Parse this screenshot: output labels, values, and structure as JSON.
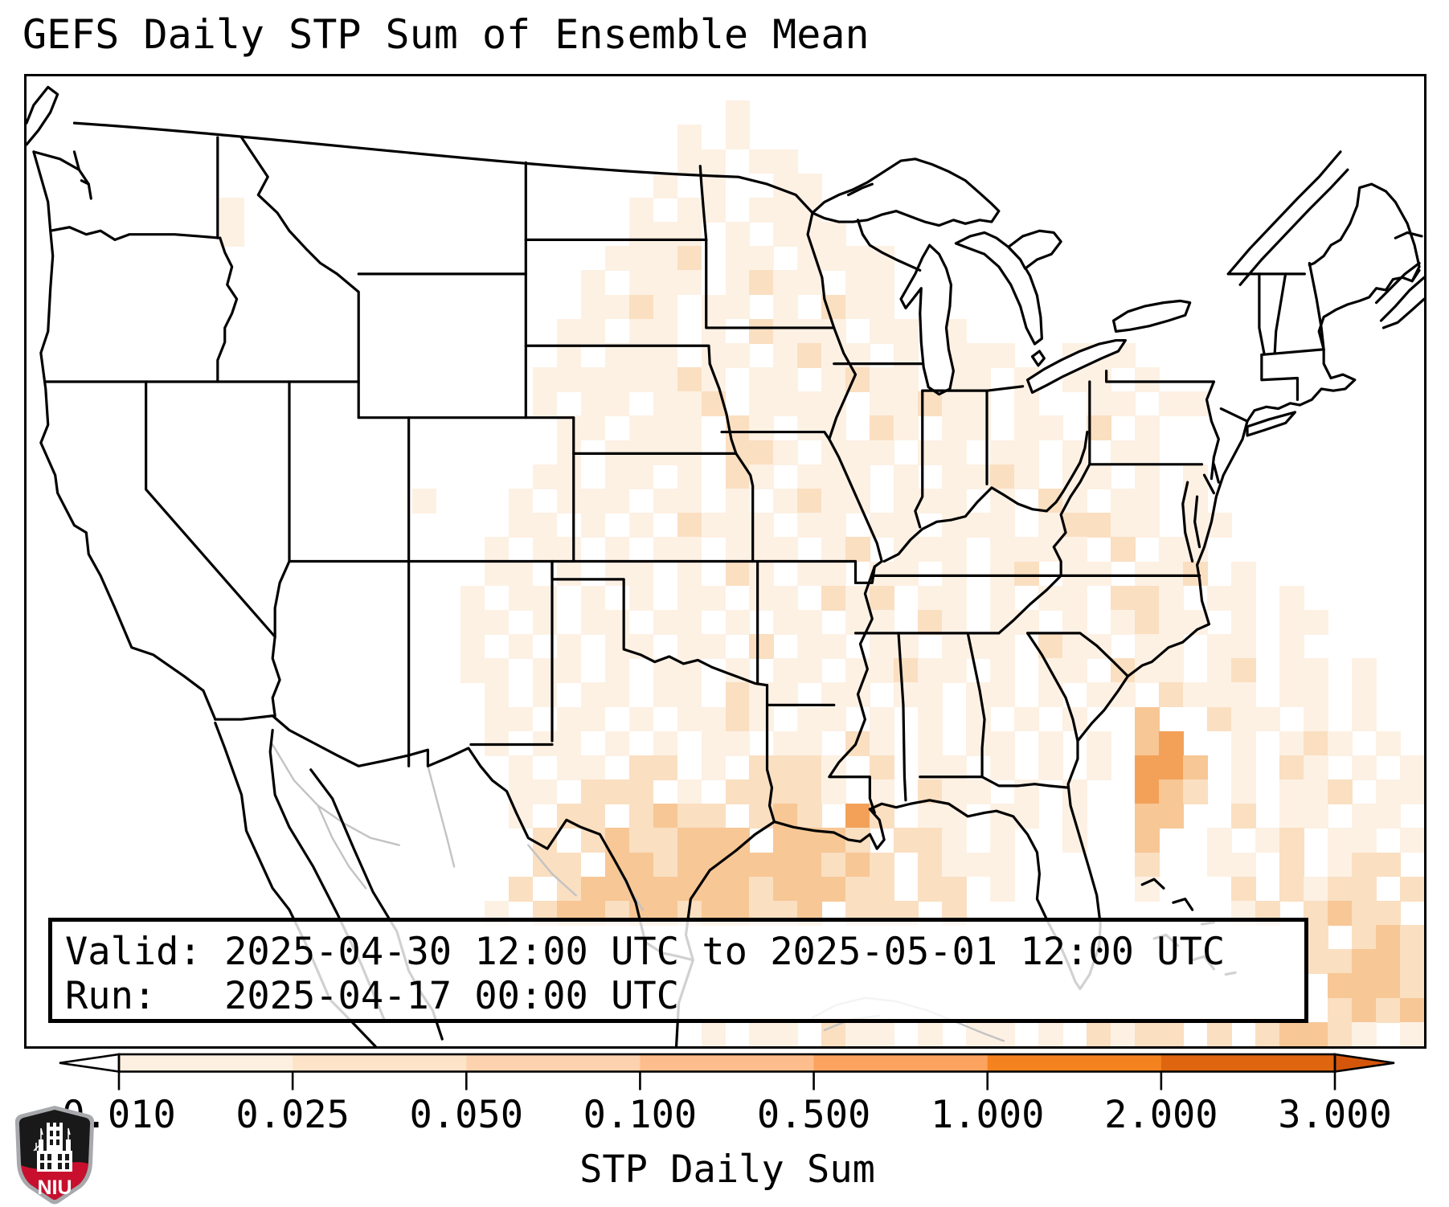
{
  "title": "GEFS Daily STP Sum of Ensemble Mean",
  "annotation": {
    "valid_line": "Valid: 2025-04-30 12:00 UTC to 2025-05-01 12:00 UTC",
    "run_line": "Run:   2025-04-17 00:00 UTC"
  },
  "colorbar": {
    "label": "STP Daily Sum",
    "ticks": [
      "0.010",
      "0.025",
      "0.050",
      "0.100",
      "0.500",
      "1.000",
      "2.000",
      "3.000"
    ],
    "segment_colors": [
      "#fdf0e0",
      "#fde3c8",
      "#fdd2ae",
      "#fdbd8c",
      "#fba35f",
      "#f4821e",
      "#e0650f"
    ],
    "under_arrow_color": "#ffffff",
    "over_arrow_color": "#d5560a",
    "outline_color": "#000000"
  },
  "logo": {
    "text": "NIU",
    "red": "#c8102e",
    "black": "#191919",
    "silver": "#a7a9ac"
  },
  "map": {
    "frame_color": "#000000",
    "neighbor_line_color": "#c3c3c3"
  },
  "heatmap": {
    "colors": {
      "1": "#fdf1e4",
      "2": "#fadfc1",
      "3": "#f7c796",
      "4": "#f3a159"
    },
    "cols": 58,
    "rows": [
      [],
      [
        [
          29,
          "1"
        ]
      ],
      [
        [
          27,
          "1.1"
        ]
      ],
      [
        [
          27,
          "11.11"
        ]
      ],
      [
        [
          26,
          "1.1..11"
        ]
      ],
      [
        [
          8,
          "1"
        ],
        [
          25,
          "1.11.111"
        ]
      ],
      [
        [
          8,
          "1"
        ],
        [
          24,
          ".111.1.111"
        ]
      ],
      [
        [
          24,
          "1112.11.1111"
        ]
      ],
      [
        [
          23,
          "1.111.1211.11"
        ]
      ],
      [
        [
          23,
          "1121.11.1.211"
        ]
      ],
      [
        [
          22,
          "11.11.1.2111.11.1"
        ]
      ],
      [
        [
          22,
          "1.111.11.1211.1.111"
        ],
        [
          43,
          "111"
        ]
      ],
      [
        [
          21,
          "11111121.11.1211.11.1"
        ],
        [
          43,
          "11.1"
        ]
      ],
      [
        [
          21,
          "1.11.112.1111.11211.1"
        ],
        [
          43,
          ".11.11"
        ]
      ],
      [
        [
          22,
          "11.111.2"
        ],
        [
          30,
          "1.11.21.11"
        ],
        [
          41,
          "11.2.1"
        ]
      ],
      [
        [
          22,
          "1.1111.22"
        ],
        [
          31,
          "1.111.11"
        ],
        [
          40,
          "11.1.11"
        ]
      ],
      [
        [
          21,
          "11.11.1.21.111.1.112"
        ],
        [
          41,
          "1.11.1.1"
        ]
      ],
      [
        [
          16,
          "1"
        ],
        [
          20,
          "1.111.11.1.1211.111.1"
        ],
        [
          42,
          "21.11.1"
        ]
      ],
      [
        [
          20,
          "11.1.1.2111.11.11.111"
        ],
        [
          42,
          "12211.11"
        ]
      ],
      [
        [
          19,
          "1.11.1.11.111.12.111.1"
        ],
        [
          41,
          "111.2.11"
        ]
      ],
      [
        [
          19,
          "11.1.11.1.21.11.11.1.1"
        ],
        [
          41,
          "2.11.112.1"
        ]
      ],
      [
        [
          18,
          "1.11.1.1.11.11.212.11.1"
        ],
        [
          41,
          ".11.221.11.1"
        ]
      ],
      [
        [
          18,
          "11.1.11.11.1.11.11.21.1"
        ],
        [
          41,
          "1.1.1211.1.11"
        ]
      ],
      [
        [
          18,
          "1.1.1.11.11.2.11.11.11"
        ],
        [
          40,
          "1.211.11.11.1"
        ]
      ],
      [
        [
          18,
          "11.11.1.11.1.11.11211.1"
        ],
        [
          41,
          ".11.211.12.11.1"
        ]
      ],
      [
        [
          19,
          "1.1.11.11.211.11.11.11"
        ],
        [
          41,
          ".1.11.2111.11.1"
        ]
      ],
      [
        [
          19,
          "11.11.1"
        ],
        [
          27,
          "1121.11.1"
        ],
        [
          37,
          "1.1"
        ],
        [
          41,
          "1.1"
        ],
        [
          46,
          "3"
        ],
        [
          48,
          ".211"
        ],
        [
          53,
          "1.1"
        ]
      ],
      [
        [
          19,
          "1.11.1"
        ],
        [
          26,
          "1.11.11.21"
        ],
        [
          37,
          "1.11"
        ],
        [
          42,
          "1.1"
        ],
        [
          46,
          "34"
        ],
        [
          50,
          "1.121"
        ],
        [
          56,
          "1"
        ]
      ],
      [
        [
          20,
          "1.11.22"
        ],
        [
          28,
          "1.2221.2"
        ],
        [
          37,
          "11.1"
        ],
        [
          42,
          "1.1"
        ],
        [
          46,
          "443"
        ],
        [
          50,
          "1.21"
        ],
        [
          55,
          "1.1"
        ]
      ],
      [
        [
          20,
          "11.222"
        ],
        [
          27,
          "1.22221.1"
        ],
        [
          37,
          "211.1"
        ],
        [
          43,
          "1"
        ],
        [
          46,
          "432"
        ],
        [
          50,
          "1.112"
        ],
        [
          56,
          "11"
        ]
      ],
      [
        [
          20,
          "1.22.2"
        ],
        [
          26,
          "322.232.42"
        ],
        [
          37,
          "11.11"
        ],
        [
          43,
          "1"
        ],
        [
          46,
          "33"
        ],
        [
          50,
          "2.11.1"
        ],
        [
          56,
          "1"
        ]
      ],
      [
        [
          21,
          "2.232"
        ],
        [
          26,
          "2333.3332.22"
        ],
        [
          38,
          "1.1"
        ],
        [
          43,
          "1"
        ],
        [
          46,
          "3"
        ],
        [
          49,
          "1.12.11.1"
        ]
      ],
      [
        [
          21,
          "22.33"
        ],
        [
          26,
          "2333333232.21"
        ],
        [
          39,
          "11"
        ],
        [
          46,
          "2"
        ],
        [
          49,
          "11.2.122"
        ]
      ],
      [
        [
          20,
          "2.2333"
        ],
        [
          26,
          "3333233322.2"
        ],
        [
          38,
          "2.1"
        ],
        [
          46,
          "1"
        ],
        [
          50,
          "2.2122.2"
        ]
      ],
      [
        [
          19,
          "1.2332"
        ],
        [
          25,
          "33233223.22"
        ],
        [
          36,
          "2.2"
        ],
        [
          50,
          "12.2322"
        ]
      ],
      [
        [
          53,
          "2.232"
        ]
      ],
      [
        [
          53,
          "22332"
        ]
      ],
      [
        [
          54,
          "3332"
        ]
      ],
      [
        [
          54,
          "2323"
        ]
      ],
      [
        [
          28,
          "1.11.211.1.11"
        ],
        [
          42,
          "1.2122"
        ],
        [
          49,
          "2.23321.1"
        ]
      ]
    ]
  }
}
